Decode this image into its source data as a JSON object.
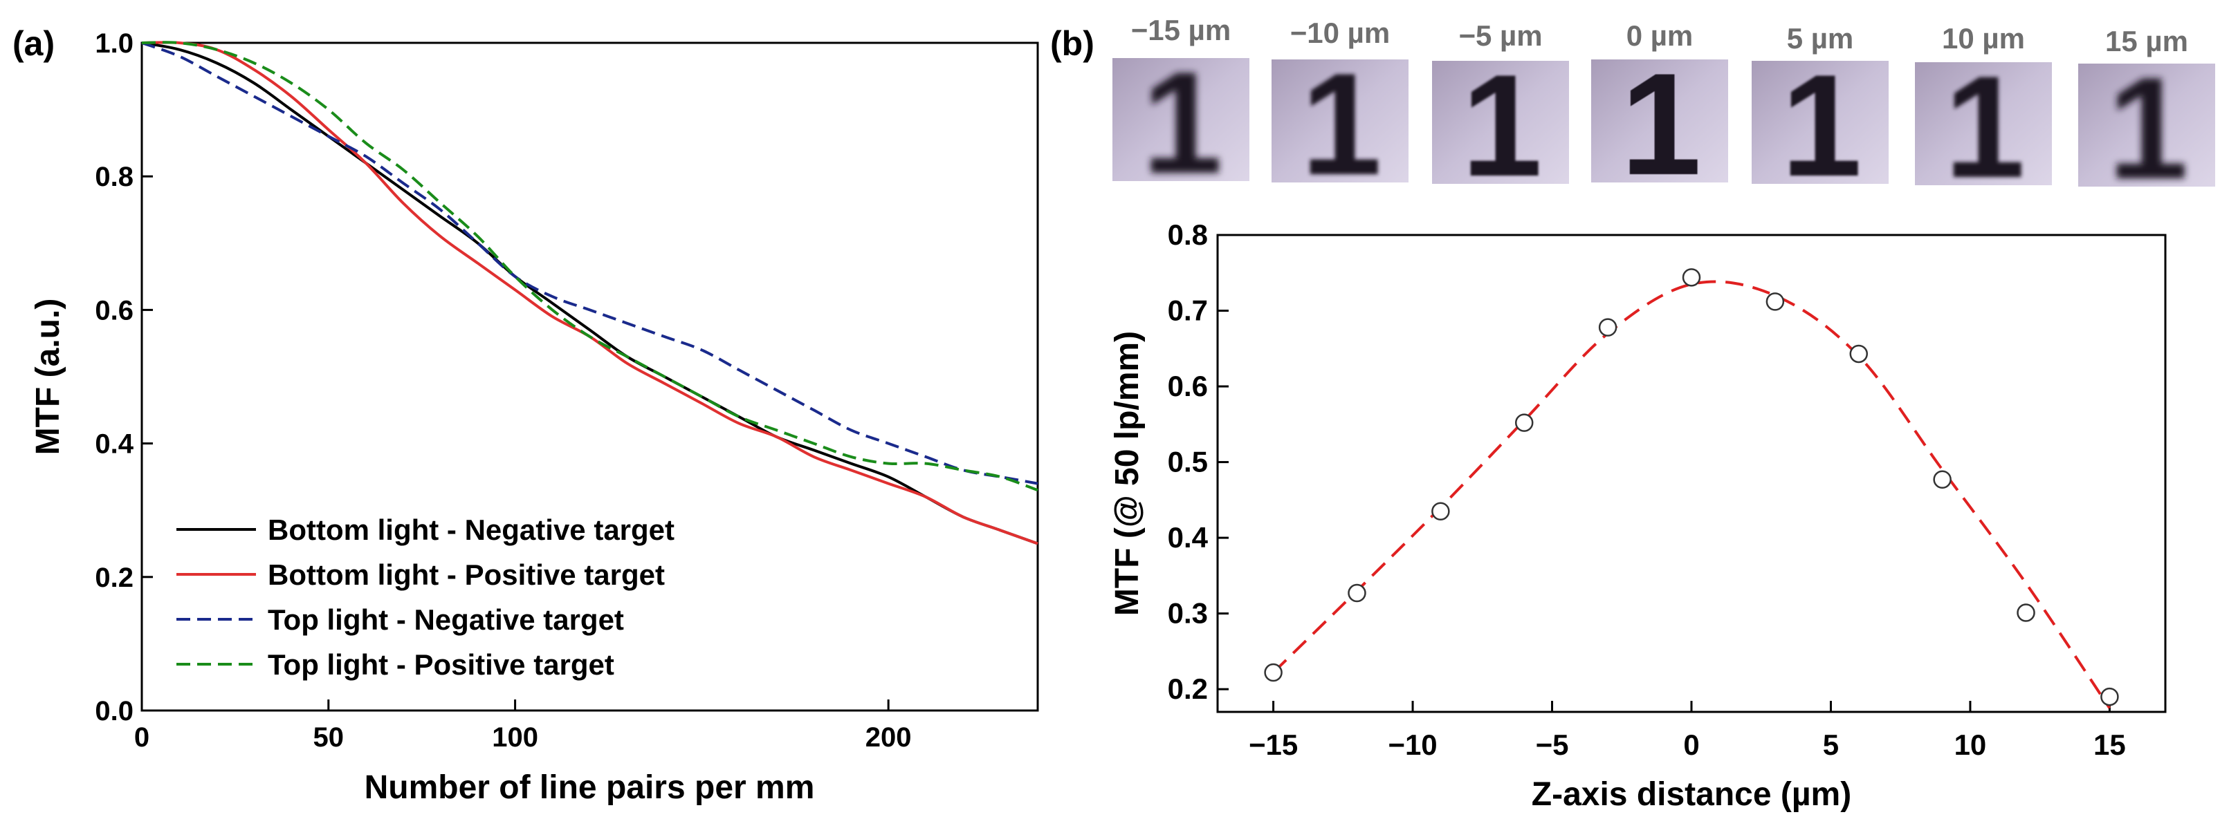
{
  "chart_data": [
    {
      "type": "line",
      "panel_label": "(a)",
      "xlabel": "Number of line pairs per mm",
      "ylabel": "MTF (a.u.)",
      "xlim": [
        0,
        240
      ],
      "ylim": [
        0,
        1.0
      ],
      "x_ticks": [
        0,
        50,
        100,
        200
      ],
      "x_tick_labels": [
        "0",
        "50",
        "100",
        "200"
      ],
      "y_ticks": [
        0,
        0.2,
        0.4,
        0.6,
        0.8,
        1.0
      ],
      "y_tick_labels": [
        "0.0",
        "0.2",
        "0.4",
        "0.6",
        "0.8",
        "1.0"
      ],
      "legend_position": "bottom-left",
      "series": [
        {
          "name": "Bottom light - Negative target",
          "color": "#000000",
          "dash": "solid",
          "x": [
            0,
            10,
            20,
            30,
            40,
            50,
            60,
            70,
            80,
            90,
            100,
            110,
            120,
            130,
            140,
            150,
            160,
            170,
            180,
            190,
            200,
            210,
            220,
            230,
            240
          ],
          "y": [
            1.0,
            0.99,
            0.97,
            0.94,
            0.9,
            0.86,
            0.82,
            0.78,
            0.74,
            0.7,
            0.65,
            0.61,
            0.57,
            0.53,
            0.5,
            0.47,
            0.44,
            0.41,
            0.39,
            0.37,
            0.35,
            0.32,
            0.29,
            0.27,
            0.25
          ]
        },
        {
          "name": "Bottom light - Positive target",
          "color": "#e03030",
          "dash": "solid",
          "x": [
            0,
            10,
            20,
            30,
            40,
            50,
            60,
            70,
            80,
            90,
            100,
            110,
            120,
            130,
            140,
            150,
            160,
            170,
            180,
            190,
            200,
            210,
            220,
            230,
            240
          ],
          "y": [
            1.0,
            1.0,
            0.99,
            0.96,
            0.92,
            0.87,
            0.82,
            0.76,
            0.71,
            0.67,
            0.63,
            0.59,
            0.56,
            0.52,
            0.49,
            0.46,
            0.43,
            0.41,
            0.38,
            0.36,
            0.34,
            0.32,
            0.29,
            0.27,
            0.25
          ]
        },
        {
          "name": "Top light - Negative target",
          "color": "#1a2a8c",
          "dash": "dashed",
          "x": [
            0,
            10,
            20,
            30,
            40,
            50,
            60,
            70,
            80,
            90,
            100,
            110,
            120,
            130,
            140,
            150,
            160,
            170,
            180,
            190,
            200,
            210,
            220,
            230,
            240
          ],
          "y": [
            1.0,
            0.98,
            0.95,
            0.92,
            0.89,
            0.86,
            0.83,
            0.79,
            0.75,
            0.7,
            0.65,
            0.62,
            0.6,
            0.58,
            0.56,
            0.54,
            0.51,
            0.48,
            0.45,
            0.42,
            0.4,
            0.38,
            0.36,
            0.35,
            0.34
          ]
        },
        {
          "name": "Top light - Positive target",
          "color": "#1a8c1a",
          "dash": "dashed",
          "x": [
            0,
            10,
            20,
            30,
            40,
            50,
            60,
            70,
            80,
            90,
            100,
            110,
            120,
            130,
            140,
            150,
            160,
            170,
            180,
            190,
            200,
            210,
            220,
            230,
            240
          ],
          "y": [
            1.0,
            1.0,
            0.99,
            0.97,
            0.94,
            0.9,
            0.85,
            0.81,
            0.76,
            0.71,
            0.65,
            0.6,
            0.56,
            0.53,
            0.5,
            0.47,
            0.44,
            0.42,
            0.4,
            0.38,
            0.37,
            0.37,
            0.36,
            0.35,
            0.33
          ]
        }
      ]
    },
    {
      "type": "scatter",
      "panel_label": "(b)",
      "xlabel": "Z-axis distance (µm)",
      "ylabel": "MTF (@ 50 lp/mm)",
      "xlim": [
        -17,
        17
      ],
      "ylim": [
        0.17,
        0.8
      ],
      "x_ticks": [
        -15,
        -10,
        -5,
        0,
        5,
        10,
        15
      ],
      "x_tick_labels": [
        "−15",
        "−10",
        "−5",
        "0",
        "5",
        "10",
        "15"
      ],
      "y_ticks": [
        0.2,
        0.3,
        0.4,
        0.5,
        0.6,
        0.7,
        0.8
      ],
      "y_tick_labels": [
        "0.2",
        "0.3",
        "0.4",
        "0.5",
        "0.6",
        "0.7",
        "0.8"
      ],
      "points": {
        "marker": "open-circle",
        "x": [
          -15,
          -12,
          -9,
          -6,
          -3,
          0,
          3,
          6,
          9,
          12,
          15
        ],
        "y": [
          0.222,
          0.327,
          0.435,
          0.552,
          0.678,
          0.744,
          0.712,
          0.643,
          0.477,
          0.301,
          0.19
        ]
      },
      "fit": {
        "color": "#e02020",
        "dash": "dashed",
        "x": [
          -15,
          -12,
          -9,
          -6,
          -3,
          0,
          3,
          6,
          9,
          12,
          15
        ],
        "y": [
          0.222,
          0.33,
          0.44,
          0.555,
          0.67,
          0.735,
          0.72,
          0.64,
          0.49,
          0.34,
          0.175
        ]
      },
      "inset_image_labels": [
        "−15 µm",
        "−10 µm",
        "−5 µm",
        "0 µm",
        "5 µm",
        "10 µm",
        "15 µm"
      ],
      "inset_glyph": "1"
    }
  ]
}
